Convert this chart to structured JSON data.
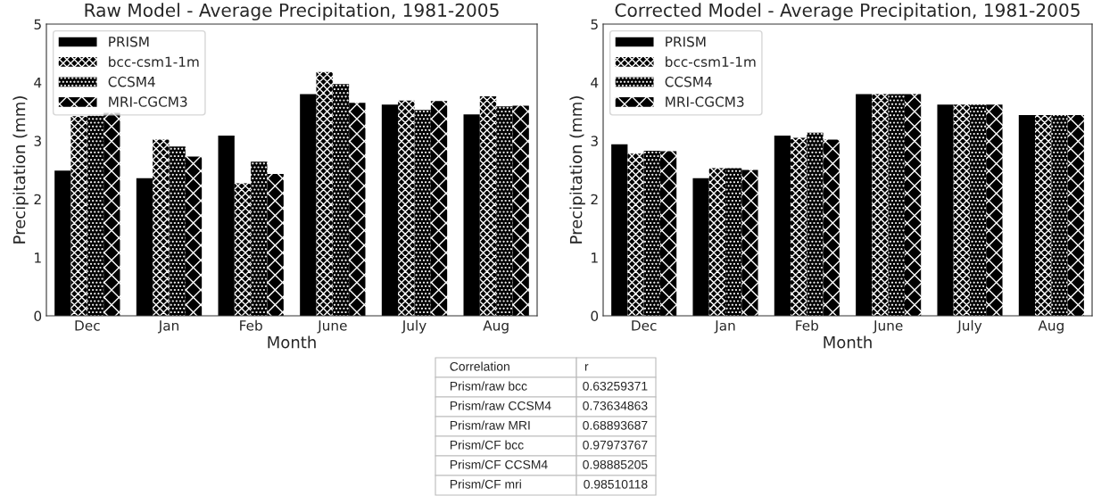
{
  "chart_data": [
    {
      "type": "bar",
      "title": "Raw Model - Average Precipitation, 1981-2005",
      "xlabel": "Month",
      "ylabel": "Precipitation (mm)",
      "categories": [
        "Dec",
        "Jan",
        "Feb",
        "June",
        "July",
        "Aug"
      ],
      "series": [
        {
          "name": "PRISM",
          "color": "#000000",
          "values": [
            2.49,
            2.36,
            3.09,
            3.8,
            3.62,
            3.45
          ]
        },
        {
          "name": "bcc-csm1-1m",
          "color": "#000000",
          "values": [
            3.42,
            3.02,
            2.27,
            4.18,
            3.69,
            3.76
          ]
        },
        {
          "name": "CCSM4",
          "color": "#000000",
          "values": [
            3.43,
            2.9,
            2.64,
            3.97,
            3.53,
            3.59
          ]
        },
        {
          "name": "MRI-CGCM3",
          "color": "#000000",
          "values": [
            3.48,
            2.73,
            2.43,
            3.65,
            3.68,
            3.6
          ]
        }
      ],
      "ylim": [
        0,
        5
      ],
      "yticks": [
        0,
        1,
        2,
        3,
        4,
        5
      ],
      "legend": "top left",
      "grid": false
    },
    {
      "type": "bar",
      "title": "Corrected Model - Average Precipitation, 1981-2005",
      "xlabel": "Month",
      "ylabel": "Precipitation (mm)",
      "categories": [
        "Dec",
        "Jan",
        "Feb",
        "June",
        "July",
        "Aug"
      ],
      "series": [
        {
          "name": "PRISM",
          "color": "#000000",
          "values": [
            2.94,
            2.36,
            3.09,
            3.8,
            3.62,
            3.44
          ]
        },
        {
          "name": "bcc-csm1-1m",
          "color": "#000000",
          "values": [
            2.78,
            2.53,
            3.05,
            3.8,
            3.62,
            3.44
          ]
        },
        {
          "name": "CCSM4",
          "color": "#000000",
          "values": [
            2.83,
            2.53,
            3.14,
            3.8,
            3.62,
            3.44
          ]
        },
        {
          "name": "MRI-CGCM3",
          "color": "#000000",
          "values": [
            2.82,
            2.5,
            3.02,
            3.8,
            3.62,
            3.44
          ]
        }
      ],
      "ylim": [
        0,
        5
      ],
      "yticks": [
        0,
        1,
        2,
        3,
        4,
        5
      ],
      "legend": "top left",
      "grid": false
    },
    {
      "type": "other",
      "annotations": [
        "Correlation",
        "r"
      ],
      "categories": [
        "Prism/raw bcc",
        "Prism/raw CCSM4",
        "Prism/raw MRI",
        "Prism/CF bcc",
        "Prism/CF CCSM4",
        "Prism/CF mri"
      ],
      "values": [
        0.63259371,
        0.73634863,
        0.68893687,
        0.97973767,
        0.98885205,
        0.98510118
      ],
      "data_labels": true
    }
  ]
}
